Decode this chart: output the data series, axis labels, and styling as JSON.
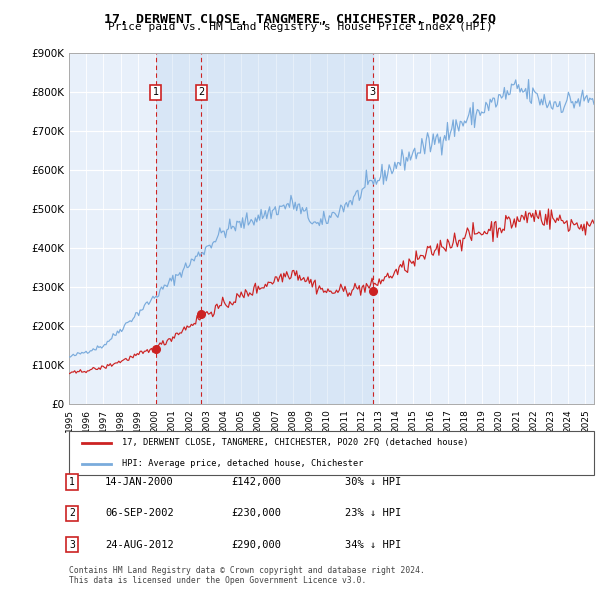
{
  "title": "17, DERWENT CLOSE, TANGMERE, CHICHESTER, PO20 2FQ",
  "subtitle": "Price paid vs. HM Land Registry's House Price Index (HPI)",
  "hpi_color": "#7aabdc",
  "price_color": "#cc2222",
  "plot_bg": "#e8f0fa",
  "ylim": [
    0,
    900000
  ],
  "yticks": [
    0,
    100000,
    200000,
    300000,
    400000,
    500000,
    600000,
    700000,
    800000,
    900000
  ],
  "transactions": [
    {
      "date_num": 2000.04,
      "price": 142000,
      "label": "1"
    },
    {
      "date_num": 2002.68,
      "price": 230000,
      "label": "2"
    },
    {
      "date_num": 2012.65,
      "price": 290000,
      "label": "3"
    }
  ],
  "legend_entries": [
    "17, DERWENT CLOSE, TANGMERE, CHICHESTER, PO20 2FQ (detached house)",
    "HPI: Average price, detached house, Chichester"
  ],
  "table_rows": [
    {
      "num": "1",
      "date": "14-JAN-2000",
      "price": "£142,000",
      "hpi": "30% ↓ HPI"
    },
    {
      "num": "2",
      "date": "06-SEP-2002",
      "price": "£230,000",
      "hpi": "23% ↓ HPI"
    },
    {
      "num": "3",
      "date": "24-AUG-2012",
      "price": "£290,000",
      "hpi": "34% ↓ HPI"
    }
  ],
  "footer": "Contains HM Land Registry data © Crown copyright and database right 2024.\nThis data is licensed under the Open Government Licence v3.0.",
  "xstart": 1995.0,
  "xend": 2025.5
}
